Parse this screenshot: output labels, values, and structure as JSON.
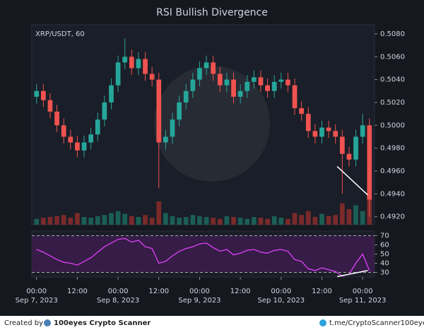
{
  "chart_data": [
    {
      "type": "candlestick",
      "title": "RSI Bullish Divergence",
      "label": "XRP/USDT, 60",
      "x": [
        0,
        2,
        4,
        6,
        8,
        10,
        12,
        14,
        16,
        18,
        20,
        22,
        24,
        26,
        28,
        30,
        32,
        34,
        36,
        38,
        40,
        42,
        44,
        46,
        48,
        50,
        52,
        54,
        56,
        58,
        60,
        62,
        64,
        66,
        68,
        70,
        72,
        74,
        76,
        78,
        80,
        82,
        84,
        86,
        88,
        90,
        92,
        94,
        96,
        98
      ],
      "open": [
        0.5025,
        0.503,
        0.5022,
        0.5012,
        0.5,
        0.499,
        0.4985,
        0.4978,
        0.4985,
        0.4992,
        0.5005,
        0.502,
        0.5035,
        0.5055,
        0.506,
        0.505,
        0.5058,
        0.5045,
        0.504,
        0.4985,
        0.499,
        0.5005,
        0.502,
        0.503,
        0.504,
        0.505,
        0.5055,
        0.5045,
        0.5035,
        0.504,
        0.5025,
        0.503,
        0.5038,
        0.5042,
        0.5035,
        0.503,
        0.5038,
        0.504,
        0.5035,
        0.5015,
        0.501,
        0.4995,
        0.499,
        0.4998,
        0.4995,
        0.499,
        0.4975,
        0.497,
        0.499,
        0.5
      ],
      "high": [
        0.5036,
        0.5036,
        0.5028,
        0.5018,
        0.5006,
        0.4996,
        0.4991,
        0.4991,
        0.4998,
        0.5011,
        0.5026,
        0.5041,
        0.5061,
        0.5076,
        0.5066,
        0.5064,
        0.5064,
        0.5051,
        0.5046,
        0.4996,
        0.5011,
        0.5026,
        0.5036,
        0.5046,
        0.5056,
        0.5061,
        0.5061,
        0.5051,
        0.5046,
        0.5046,
        0.5036,
        0.5044,
        0.5048,
        0.5048,
        0.5041,
        0.5044,
        0.5046,
        0.5046,
        0.5041,
        0.5021,
        0.5016,
        0.5001,
        0.5004,
        0.5004,
        0.5001,
        0.4996,
        0.4981,
        0.4996,
        0.501,
        0.5006
      ],
      "low": [
        0.5019,
        0.5016,
        0.5006,
        0.4994,
        0.4984,
        0.4979,
        0.4972,
        0.4972,
        0.4979,
        0.4986,
        0.4999,
        0.5014,
        0.5029,
        0.5049,
        0.5044,
        0.5044,
        0.5039,
        0.5034,
        0.4945,
        0.4979,
        0.4984,
        0.4999,
        0.5014,
        0.5024,
        0.5034,
        0.5044,
        0.5039,
        0.5029,
        0.5029,
        0.5019,
        0.5019,
        0.5024,
        0.5032,
        0.5029,
        0.5024,
        0.5024,
        0.5032,
        0.5029,
        0.5009,
        0.5004,
        0.4989,
        0.4984,
        0.4984,
        0.4989,
        0.4984,
        0.494,
        0.4964,
        0.4964,
        0.4984,
        0.492
      ],
      "close": [
        0.503,
        0.5022,
        0.5012,
        0.5,
        0.499,
        0.4985,
        0.4978,
        0.4985,
        0.4992,
        0.5005,
        0.502,
        0.5035,
        0.5055,
        0.506,
        0.505,
        0.5058,
        0.5045,
        0.504,
        0.4985,
        0.499,
        0.5005,
        0.502,
        0.503,
        0.504,
        0.505,
        0.5055,
        0.5045,
        0.5035,
        0.504,
        0.5025,
        0.503,
        0.5038,
        0.5042,
        0.5035,
        0.503,
        0.5038,
        0.504,
        0.5035,
        0.5015,
        0.501,
        0.4995,
        0.499,
        0.4998,
        0.4995,
        0.499,
        0.4975,
        0.497,
        0.499,
        0.5,
        0.4935
      ],
      "volume": [
        15,
        18,
        20,
        22,
        25,
        18,
        30,
        20,
        18,
        22,
        25,
        30,
        35,
        28,
        22,
        20,
        25,
        18,
        60,
        30,
        22,
        18,
        20,
        25,
        22,
        20,
        18,
        15,
        22,
        20,
        18,
        15,
        20,
        18,
        15,
        22,
        18,
        15,
        30,
        25,
        35,
        20,
        28,
        22,
        25,
        55,
        40,
        50,
        35,
        70
      ],
      "vlim": [
        0,
        100
      ],
      "up_color": "#26a69a",
      "down_color": "#ef5350",
      "up_volume_color": "#1b5e55",
      "down_volume_color": "#7a2a2a",
      "xlim": [
        -1.4,
        99.5
      ],
      "ylim": [
        0.4913,
        0.5088
      ],
      "yticks": [
        {
          "value": 0.492,
          "label": "0.4920"
        },
        {
          "value": 0.494,
          "label": "0.4940"
        },
        {
          "value": 0.496,
          "label": "0.4960"
        },
        {
          "value": 0.498,
          "label": "0.4980"
        },
        {
          "value": 0.5,
          "label": "0.5000"
        },
        {
          "value": 0.502,
          "label": "0.5020"
        },
        {
          "value": 0.504,
          "label": "0.5040"
        },
        {
          "value": 0.506,
          "label": "0.5060"
        },
        {
          "value": 0.508,
          "label": "0.5080"
        }
      ],
      "divergence": {
        "x": [
          88.5,
          97.5
        ],
        "values": [
          0.4964,
          0.4939
        ],
        "color": "#ffffff"
      }
    },
    {
      "type": "line",
      "x": [
        0,
        2,
        4,
        6,
        8,
        10,
        12,
        14,
        16,
        18,
        20,
        22,
        24,
        26,
        28,
        30,
        32,
        34,
        36,
        38,
        40,
        42,
        44,
        46,
        48,
        50,
        52,
        54,
        56,
        58,
        60,
        62,
        64,
        66,
        68,
        70,
        72,
        74,
        76,
        78,
        80,
        82,
        84,
        86,
        88,
        90,
        92,
        94,
        96,
        98
      ],
      "values": [
        55,
        52,
        48,
        44,
        41,
        40,
        38,
        42,
        46,
        52,
        58,
        62,
        66,
        67,
        63,
        65,
        58,
        56,
        40,
        42,
        48,
        53,
        56,
        58,
        61,
        62,
        57,
        53,
        55,
        49,
        51,
        54,
        55,
        52,
        51,
        54,
        55,
        53,
        44,
        42,
        34,
        32,
        35,
        33,
        31,
        26,
        28,
        40,
        50,
        32
      ],
      "color": "#e040fb",
      "band_color": "#4a1a5a",
      "xlim": [
        -1.4,
        99.5
      ],
      "ylim": [
        25,
        75
      ],
      "yticks": [
        30,
        40,
        50,
        60,
        70
      ],
      "xticks": [
        {
          "value": 0,
          "label": "00:00",
          "date": "Sep 7, 2023"
        },
        {
          "value": 12,
          "label": "12:00"
        },
        {
          "value": 24,
          "label": "00:00",
          "date": "Sep 8, 2023"
        },
        {
          "value": 36,
          "label": "12:00"
        },
        {
          "value": 48,
          "label": "00:00",
          "date": "Sep 9, 2023"
        },
        {
          "value": 60,
          "label": "12:00"
        },
        {
          "value": 72,
          "label": "00:00",
          "date": "Sep 10, 2023"
        },
        {
          "value": 84,
          "label": "12:00"
        },
        {
          "value": 96,
          "label": "00:00",
          "date": "Sep 11, 2023"
        }
      ],
      "divergence": {
        "x": [
          88.5,
          97.5
        ],
        "values": [
          25.5,
          32
        ],
        "color": "#ffffff"
      }
    }
  ],
  "footer": {
    "created_by": "Created by",
    "brand": "100eyes Crypto Scanner",
    "telegram": "t.me/CryptoScanner100eyes"
  }
}
